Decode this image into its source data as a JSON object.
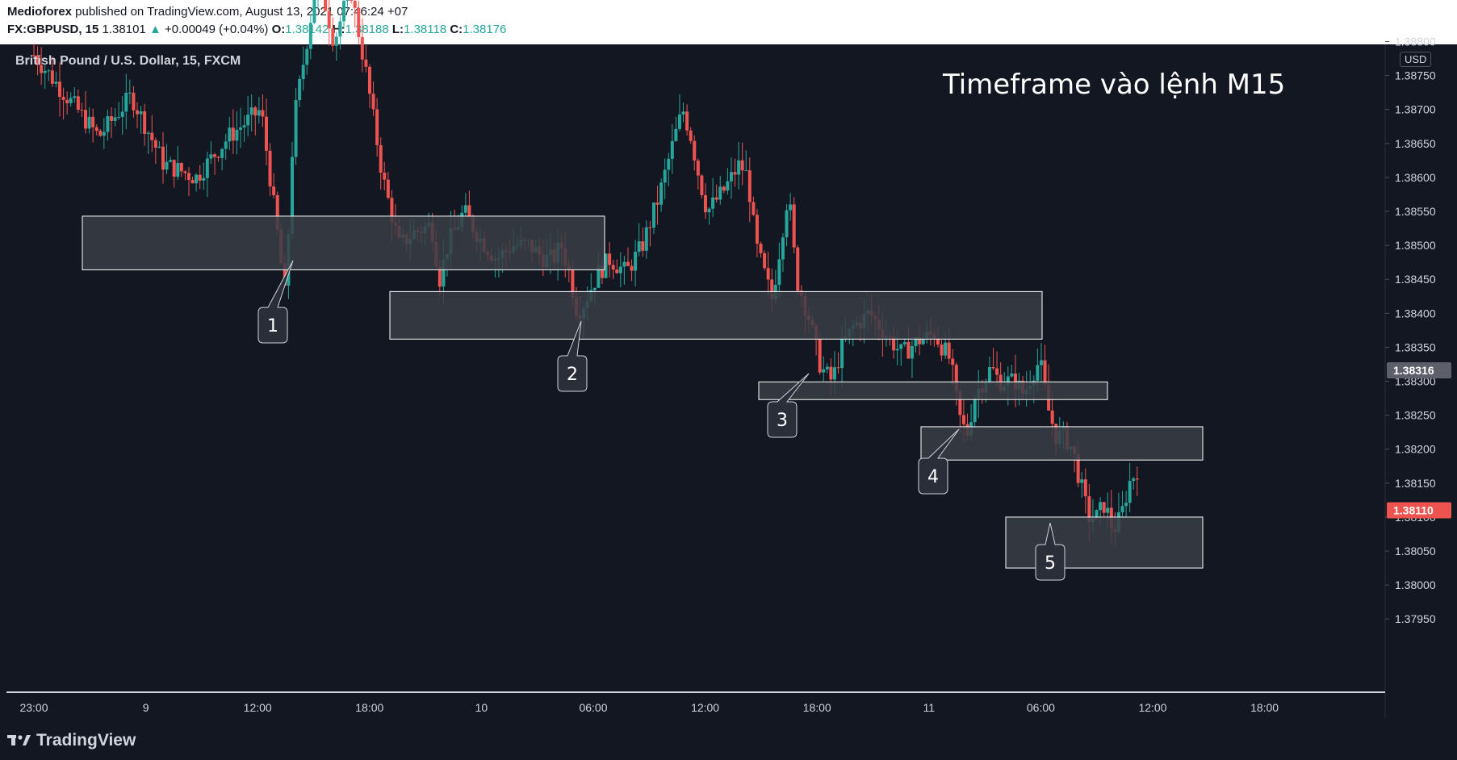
{
  "header": {
    "author": "Medioforex",
    "published": " published on TradingView.com, August 13, 2021 07:46:24 +07",
    "symbol": "FX:GBPUSD, 15",
    "last": "1.38101",
    "arrow": "▲",
    "change": "+0.00049 (+0.04%)",
    "o_label": "O:",
    "o": "1.38142",
    "h_label": "H:",
    "h": "1.38188",
    "l_label": "L:",
    "l": "1.38118",
    "c_label": "C:",
    "c": "1.38176"
  },
  "chart_title": "British Pound / U.S. Dollar, 15, FXCM",
  "annotation": "Timeframe vào lệnh M15",
  "currency": "USD",
  "footer": {
    "brand": "TradingView"
  },
  "colors": {
    "up": "#26a69a",
    "down": "#ef5350",
    "background": "#131722",
    "zone": "#3a3d45"
  },
  "chart_data": {
    "type": "candlestick",
    "ylim": [
      1.3792,
      1.3886
    ],
    "y_ticks": [
      "1.38800",
      "1.38750",
      "1.38700",
      "1.38650",
      "1.38600",
      "1.38550",
      "1.38500",
      "1.38450",
      "1.38400",
      "1.38350",
      "1.38300",
      "1.38250",
      "1.38200",
      "1.38150",
      "1.38100",
      "1.38050",
      "1.38000",
      "1.37950"
    ],
    "x_ticks": [
      "23:00",
      "9",
      "12:00",
      "18:00",
      "10",
      "06:00",
      "12:00",
      "18:00",
      "11",
      "06:00",
      "12:00",
      "18:00"
    ],
    "price_markers": [
      {
        "value": "1.38316",
        "color": "#5d606b"
      },
      {
        "value": "1.38110",
        "color": "#ef5350"
      }
    ],
    "zones": [
      {
        "label": "1",
        "top": 1.38543,
        "bottom": 1.38464
      },
      {
        "label": "2",
        "top": 1.38432,
        "bottom": 1.38362
      },
      {
        "label": "3",
        "top": 1.38299,
        "bottom": 1.38273
      },
      {
        "label": "4",
        "top": 1.38233,
        "bottom": 1.38184
      },
      {
        "label": "5",
        "top": 1.381,
        "bottom": 1.38025
      }
    ],
    "close_path": [
      [
        23.0,
        1.3878
      ],
      [
        25.0,
        1.3872
      ],
      [
        27.0,
        1.3866
      ],
      [
        29.0,
        1.3872
      ],
      [
        31.0,
        1.3862
      ],
      [
        33.0,
        1.386
      ],
      [
        35.0,
        1.3866
      ],
      [
        37.0,
        1.387
      ],
      [
        38.0,
        1.3852
      ],
      [
        38.5,
        1.3842
      ],
      [
        39.0,
        1.3868
      ],
      [
        40.5,
        1.389
      ],
      [
        41.5,
        1.388
      ],
      [
        42.5,
        1.3888
      ],
      [
        43.5,
        1.3875
      ],
      [
        44.5,
        1.386
      ],
      [
        45.5,
        1.385
      ],
      [
        46.5,
        1.3852
      ],
      [
        47.5,
        1.3853
      ],
      [
        48.0,
        1.3845
      ],
      [
        48.5,
        1.385
      ],
      [
        49.5,
        1.3855
      ],
      [
        50.5,
        1.3851
      ],
      [
        51.5,
        1.3848
      ],
      [
        52.5,
        1.385
      ],
      [
        53.5,
        1.385
      ],
      [
        54.5,
        1.3848
      ],
      [
        55.0,
        1.3848
      ],
      [
        55.5,
        1.385
      ],
      [
        56.0,
        1.3846
      ],
      [
        56.5,
        1.384
      ],
      [
        57.0,
        1.3842
      ],
      [
        57.8,
        1.3846
      ],
      [
        58.5,
        1.3848
      ],
      [
        59.5,
        1.3846
      ],
      [
        60.5,
        1.385
      ],
      [
        61.5,
        1.3857
      ],
      [
        62.5,
        1.3866
      ],
      [
        63.0,
        1.387
      ],
      [
        63.5,
        1.3866
      ],
      [
        64.0,
        1.386
      ],
      [
        64.5,
        1.3855
      ],
      [
        65.5,
        1.3858
      ],
      [
        66.5,
        1.3862
      ],
      [
        67.0,
        1.386
      ],
      [
        67.5,
        1.385
      ],
      [
        68.5,
        1.3842
      ],
      [
        69.0,
        1.385
      ],
      [
        69.5,
        1.3858
      ],
      [
        70.0,
        1.3845
      ],
      [
        70.7,
        1.384
      ],
      [
        71.5,
        1.3832
      ],
      [
        72.2,
        1.383
      ],
      [
        72.8,
        1.3835
      ],
      [
        73.5,
        1.3838
      ],
      [
        74.5,
        1.384
      ],
      [
        75.5,
        1.3837
      ],
      [
        76.5,
        1.3834
      ],
      [
        77.5,
        1.3836
      ],
      [
        78.5,
        1.3837
      ],
      [
        79.5,
        1.3833
      ],
      [
        80.0,
        1.3825
      ],
      [
        80.5,
        1.3822
      ],
      [
        81.0,
        1.3828
      ],
      [
        81.5,
        1.383
      ],
      [
        82.0,
        1.3832
      ],
      [
        82.5,
        1.383
      ],
      [
        83.5,
        1.383
      ],
      [
        84.0,
        1.3828
      ],
      [
        84.5,
        1.3831
      ],
      [
        85.0,
        1.3833
      ],
      [
        85.5,
        1.3826
      ],
      [
        86.0,
        1.3822
      ],
      [
        86.5,
        1.3822
      ],
      [
        87.0,
        1.382
      ],
      [
        87.5,
        1.3815
      ],
      [
        88.0,
        1.381
      ],
      [
        88.5,
        1.381
      ],
      [
        89.0,
        1.3812
      ],
      [
        89.5,
        1.3808
      ],
      [
        90.0,
        1.381
      ],
      [
        90.5,
        1.3815
      ],
      [
        91.0,
        1.3817
      ]
    ]
  }
}
